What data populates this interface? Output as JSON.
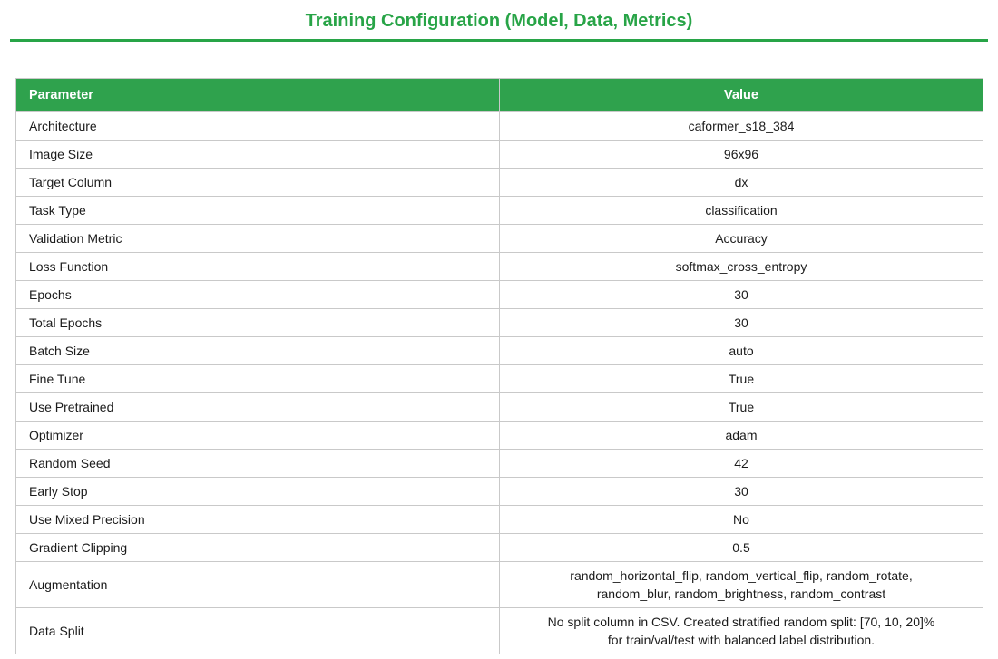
{
  "colors": {
    "accent_green": "#28a447",
    "header_bg": "#2fa24d",
    "header_text": "#ffffff",
    "border_gray": "#c9c9c9",
    "text_color": "#1b1b1b"
  },
  "page": {
    "title": "Training Configuration (Model, Data, Metrics)"
  },
  "table": {
    "columns": [
      "Parameter",
      "Value"
    ],
    "rows": [
      {
        "parameter": "Architecture",
        "value": "caformer_s18_384"
      },
      {
        "parameter": "Image Size",
        "value": "96x96"
      },
      {
        "parameter": "Target Column",
        "value": "dx"
      },
      {
        "parameter": "Task Type",
        "value": "classification"
      },
      {
        "parameter": "Validation Metric",
        "value": "Accuracy"
      },
      {
        "parameter": "Loss Function",
        "value": "softmax_cross_entropy"
      },
      {
        "parameter": "Epochs",
        "value": "30"
      },
      {
        "parameter": "Total Epochs",
        "value": "30"
      },
      {
        "parameter": "Batch Size",
        "value": "auto"
      },
      {
        "parameter": "Fine Tune",
        "value": "True"
      },
      {
        "parameter": "Use Pretrained",
        "value": "True"
      },
      {
        "parameter": "Optimizer",
        "value": "adam"
      },
      {
        "parameter": "Random Seed",
        "value": "42"
      },
      {
        "parameter": "Early Stop",
        "value": "30"
      },
      {
        "parameter": "Use Mixed Precision",
        "value": "No"
      },
      {
        "parameter": "Gradient Clipping",
        "value": "0.5"
      },
      {
        "parameter": "Augmentation",
        "value": "random_horizontal_flip, random_vertical_flip, random_rotate,\nrandom_blur, random_brightness, random_contrast"
      },
      {
        "parameter": "Data Split",
        "value": "No split column in CSV. Created stratified random split: [70, 10, 20]%\nfor train/val/test with balanced label distribution."
      }
    ]
  }
}
